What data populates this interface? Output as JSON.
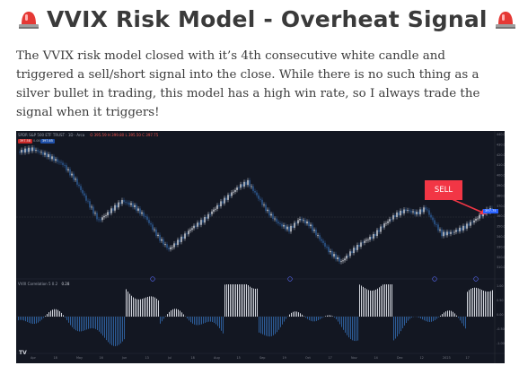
{
  "title": {
    "text": "VVIX Risk Model - Overheat Signal",
    "icon_left": "siren-icon",
    "icon_right": "siren-icon"
  },
  "intro": "The VVIX risk model closed with it’s 4th consecutive white candle and triggered a sell/short signal into the close. While there is no such thing as a silver bullet in trading, this model has a high win rate, so I always trade the signal when it triggers!",
  "chart": {
    "header": "SPDR S&P 500 ETF TRUST · 1D · Arca",
    "header_quote": "O 395.59 H 399.80 L 395.50 C 397.75",
    "pills": [
      "397.58",
      "0.08",
      "397.65"
    ],
    "indicator_label": "VVIX Correlation 5 0.2",
    "indicator_value": "0.28",
    "sell_label": "SELL",
    "last_price": "397.75",
    "price_axis": [
      "440.00",
      "430.00",
      "420.00",
      "410.00",
      "400.00",
      "390.00",
      "380.00",
      "370.00",
      "360.00",
      "350.00",
      "340.00",
      "330.00",
      "320.00",
      "310.00"
    ],
    "indicator_axis": [
      "1.00",
      "0.50",
      "0.00",
      "-0.50",
      "-1.00"
    ],
    "time_axis": [
      "Apr",
      "18",
      "May",
      "16",
      "Jun",
      "13",
      "Jul",
      "18",
      "Aug",
      "15",
      "Sep",
      "19",
      "Oct",
      "17",
      "Nov",
      "14",
      "Dec",
      "12",
      "2023",
      "17"
    ],
    "colors": {
      "background": "#131722",
      "candle_up": "#e0e3eb",
      "candle_down": "#2f5f9a",
      "sell": "#f23645",
      "hist_up": "#d1d4dc",
      "hist_down": "#2d5d99"
    }
  }
}
